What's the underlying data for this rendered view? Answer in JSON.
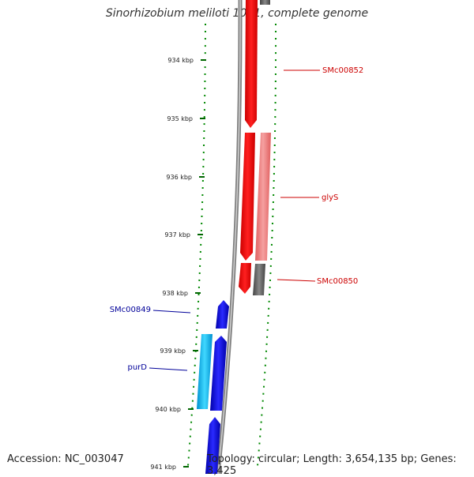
{
  "title": "Sinorhizobium meliloti 1021, complete genome",
  "footer": {
    "accession": "Accession: NC_003047",
    "stats": "Topology: circular; Length: 3,654,135 bp; Genes: 3,425"
  },
  "colors": {
    "forward_gene": "#ff0000",
    "forward_gene_light": "#f08080",
    "forward_gene_grey": "#666666",
    "reverse_gene": "#0000ee",
    "reverse_gene_light": "#00bfff",
    "label_forward": "#cc0000",
    "label_reverse": "#000099",
    "tick": "#006600",
    "backbone": "#808080"
  },
  "ticks": [
    "934 kbp",
    "935 kbp",
    "936 kbp",
    "937 kbp",
    "938 kbp",
    "939 kbp",
    "940 kbp",
    "941 kbp"
  ],
  "gene_labels": [
    {
      "text": "SMc00852",
      "strand": "forward"
    },
    {
      "text": "glyS",
      "strand": "forward"
    },
    {
      "text": "SMc00850",
      "strand": "forward"
    },
    {
      "text": "SMc00849",
      "strand": "reverse"
    },
    {
      "text": "purD",
      "strand": "reverse"
    }
  ]
}
